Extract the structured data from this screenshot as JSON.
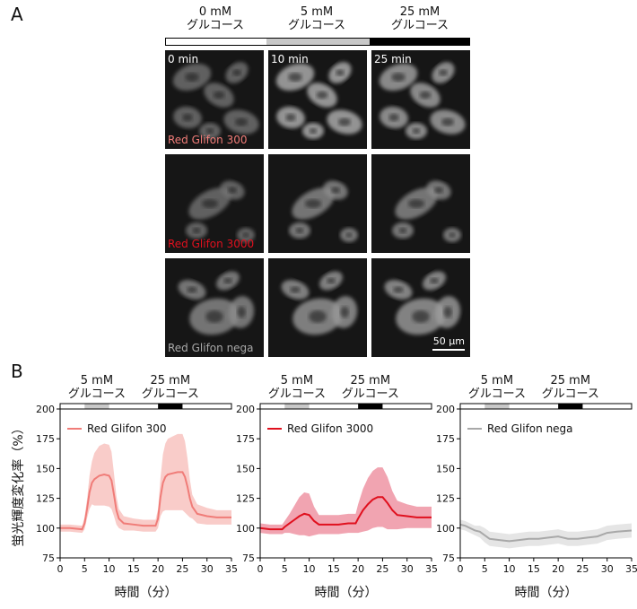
{
  "panel_a": {
    "letter": "A",
    "conditions": [
      {
        "conc": "0 mM",
        "name": "グルコース",
        "bar_color": "#ffffff"
      },
      {
        "conc": "5 mM",
        "name": "グルコース",
        "bar_color": "#c8c8c8"
      },
      {
        "conc": "25 mM",
        "name": "グルコース",
        "bar_color": "#000000"
      }
    ],
    "times": [
      "0 min",
      "10 min",
      "25 min"
    ],
    "probes": [
      {
        "name": "Red Glifon 300",
        "color": "#f07c78"
      },
      {
        "name": "Red Glifon 3000",
        "color": "#e0101e"
      },
      {
        "name": "Red Glifon nega",
        "color": "#a8a8a8"
      }
    ],
    "scale_bar": "50 μm"
  },
  "panel_b": {
    "letter": "B",
    "ylabel": "蛍光輝度変化率（%）",
    "xlabel": "時間（分）",
    "stim_labels": [
      {
        "conc": "5 mM",
        "name": "グルコース"
      },
      {
        "conc": "25 mM",
        "name": "グルコース"
      }
    ]
  },
  "chart_data": [
    {
      "type": "line",
      "legend": "Red Glifon 300",
      "color": "#f07c78",
      "band_color": "#f8c6c3",
      "xlim": [
        0,
        35
      ],
      "ylim": [
        75,
        200
      ],
      "xticks": [
        0,
        5,
        10,
        15,
        20,
        25,
        30,
        35
      ],
      "yticks": [
        75,
        100,
        125,
        150,
        175,
        200
      ],
      "stimulus": [
        {
          "start": 5,
          "end": 10,
          "color": "#c8c8c8"
        },
        {
          "start": 20,
          "end": 25,
          "color": "#000000"
        }
      ],
      "x": [
        0,
        2,
        4.5,
        5,
        5.5,
        6,
        6.5,
        7,
        8,
        9,
        10,
        10.5,
        11,
        11.5,
        12,
        13,
        15,
        17,
        19.5,
        20,
        20.5,
        21,
        21.5,
        22,
        23,
        24,
        25,
        25.5,
        26,
        26.5,
        27,
        28,
        30,
        32,
        35
      ],
      "y": [
        100,
        100,
        99,
        104,
        116,
        130,
        138,
        141,
        144,
        145,
        144,
        140,
        128,
        115,
        108,
        104,
        103,
        102,
        102,
        108,
        126,
        138,
        143,
        145,
        146,
        147,
        147,
        143,
        135,
        125,
        118,
        112,
        110,
        109,
        109
      ],
      "band": [
        3,
        3,
        3,
        5,
        8,
        14,
        18,
        22,
        25,
        26,
        26,
        24,
        18,
        12,
        8,
        6,
        5,
        5,
        5,
        8,
        16,
        24,
        28,
        30,
        31,
        32,
        32,
        30,
        24,
        16,
        10,
        8,
        7,
        6,
        6
      ]
    },
    {
      "type": "line",
      "legend": "Red Glifon 3000",
      "color": "#e0101e",
      "band_color": "#f09aa8",
      "xlim": [
        0,
        35
      ],
      "ylim": [
        75,
        200
      ],
      "xticks": [
        0,
        5,
        10,
        15,
        20,
        25,
        30,
        35
      ],
      "yticks": [
        75,
        100,
        125,
        150,
        175,
        200
      ],
      "stimulus": [
        {
          "start": 5,
          "end": 10,
          "color": "#c8c8c8"
        },
        {
          "start": 20,
          "end": 25,
          "color": "#000000"
        }
      ],
      "x": [
        0,
        2,
        4.5,
        5,
        6,
        7,
        8,
        9,
        10,
        11,
        12,
        14,
        16,
        18,
        19.5,
        20,
        21,
        22,
        23,
        24,
        25,
        26,
        27,
        28,
        30,
        32,
        35
      ],
      "y": [
        100,
        99,
        99,
        101,
        104,
        107,
        110,
        112,
        111,
        106,
        103,
        103,
        103,
        104,
        104,
        108,
        115,
        120,
        124,
        126,
        126,
        121,
        115,
        111,
        110,
        109,
        109
      ],
      "band": [
        4,
        4,
        4,
        5,
        8,
        12,
        16,
        18,
        18,
        12,
        8,
        8,
        8,
        8,
        8,
        12,
        18,
        22,
        24,
        25,
        25,
        22,
        16,
        12,
        10,
        9,
        9
      ]
    },
    {
      "type": "line",
      "legend": "Red Glifon nega",
      "color": "#a8a8a8",
      "band_color": "#e2e2e2",
      "xlim": [
        0,
        35
      ],
      "ylim": [
        75,
        200
      ],
      "xticks": [
        0,
        5,
        10,
        15,
        20,
        25,
        30,
        35
      ],
      "yticks": [
        75,
        100,
        125,
        150,
        175,
        200
      ],
      "stimulus": [
        {
          "start": 5,
          "end": 10,
          "color": "#c8c8c8"
        },
        {
          "start": 20,
          "end": 25,
          "color": "#000000"
        }
      ],
      "x": [
        0,
        1,
        2,
        3,
        4,
        5,
        6,
        8,
        10,
        12,
        14,
        16,
        18,
        20,
        21,
        22,
        24,
        26,
        28,
        30,
        32,
        35
      ],
      "y": [
        103,
        102,
        100,
        98,
        97,
        94,
        91,
        90,
        89,
        90,
        91,
        91,
        92,
        93,
        92,
        91,
        91,
        92,
        93,
        96,
        97,
        98
      ],
      "band": [
        4,
        4,
        4,
        4,
        5,
        6,
        6,
        6,
        6,
        6,
        6,
        6,
        6,
        6,
        6,
        6,
        6,
        6,
        6,
        6,
        6,
        6
      ]
    }
  ]
}
